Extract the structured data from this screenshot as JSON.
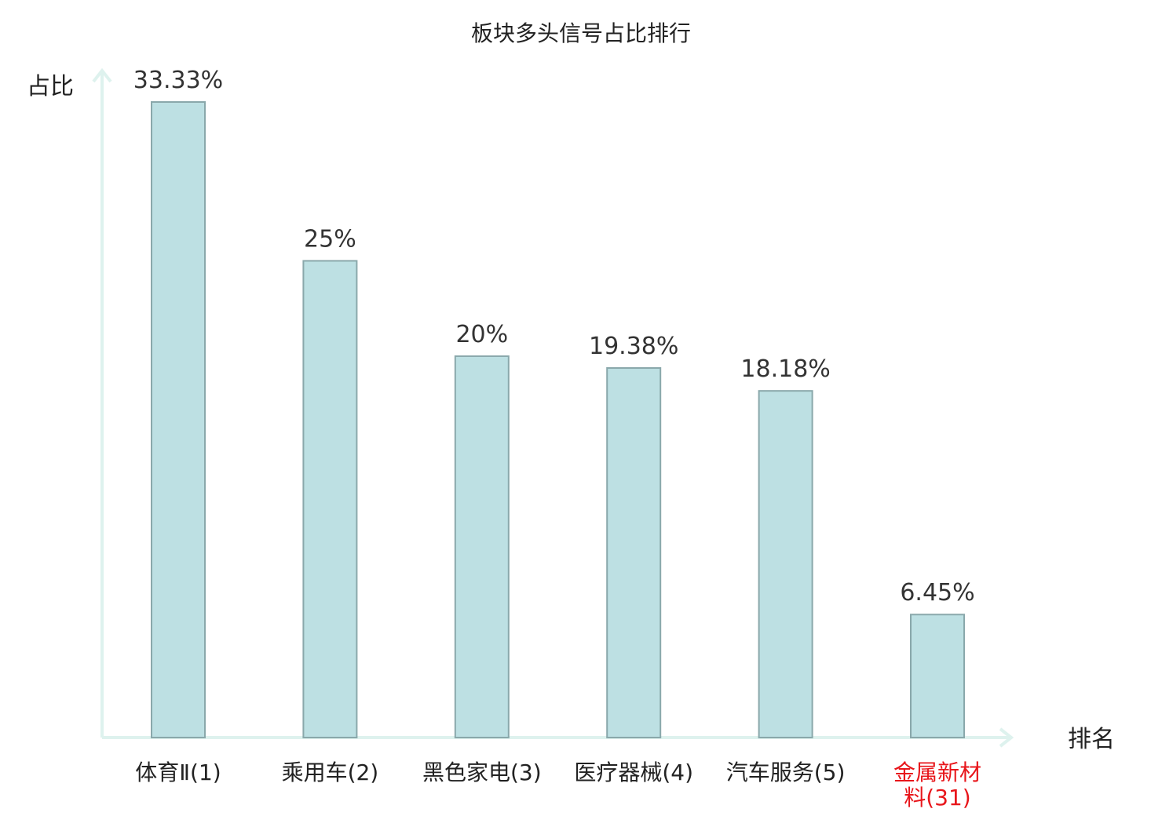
{
  "chart_data": {
    "type": "bar",
    "title": "板块多头信号占比排行",
    "ylabel": "占比",
    "xlabel": "排名",
    "ylim": [
      0,
      35
    ],
    "categories": [
      {
        "lines": [
          "体育Ⅱ(1)"
        ],
        "highlight": false
      },
      {
        "lines": [
          "乘用车(2)"
        ],
        "highlight": false
      },
      {
        "lines": [
          "黑色家电(3)"
        ],
        "highlight": false
      },
      {
        "lines": [
          "医疗器械(4)"
        ],
        "highlight": false
      },
      {
        "lines": [
          "汽车服务(5)"
        ],
        "highlight": false
      },
      {
        "lines": [
          "金属新材",
          "料(31)"
        ],
        "highlight": true
      }
    ],
    "values": [
      33.33,
      25,
      20,
      19.38,
      18.18,
      6.45
    ],
    "value_labels": [
      "33.33%",
      "25%",
      "20%",
      "19.38%",
      "18.18%",
      "6.45%"
    ],
    "grid": false,
    "colors": {
      "bar_fill": "#bde0e3",
      "bar_stroke": "#8aa8ab",
      "axis": "#def2ee",
      "text": "#222222",
      "highlight_text": "#e8161b"
    }
  }
}
